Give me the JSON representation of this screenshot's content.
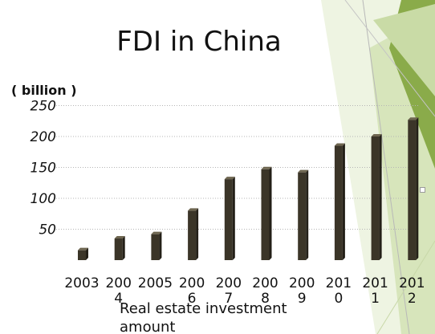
{
  "chart_data": {
    "type": "bar",
    "title": "FDI in China",
    "unit_label": "( billion )",
    "xlabel": "Real estate investment amount",
    "ylabel": "",
    "categories": [
      "2003",
      "2004",
      "2005",
      "2006",
      "2007",
      "2008",
      "2009",
      "2010",
      "2011",
      "2012"
    ],
    "category_lines": [
      [
        "2003",
        ""
      ],
      [
        "200",
        "4"
      ],
      [
        "2005",
        ""
      ],
      [
        "200",
        "6"
      ],
      [
        "200",
        "7"
      ],
      [
        "200",
        "8"
      ],
      [
        "200",
        "9"
      ],
      [
        "201",
        "0"
      ],
      [
        "201",
        "1"
      ],
      [
        "201",
        "2"
      ]
    ],
    "values": [
      16,
      35,
      42,
      80,
      131,
      147,
      142,
      185,
      200,
      227
    ],
    "yticks": [
      50,
      100,
      150,
      200,
      250
    ],
    "ylim": [
      0,
      250
    ],
    "grid": true,
    "legend": "none",
    "bar_color": "#3b3528"
  },
  "decoration": {
    "accent_colors": [
      "#8aab4a",
      "#c9dba6",
      "#e4eed2"
    ]
  }
}
